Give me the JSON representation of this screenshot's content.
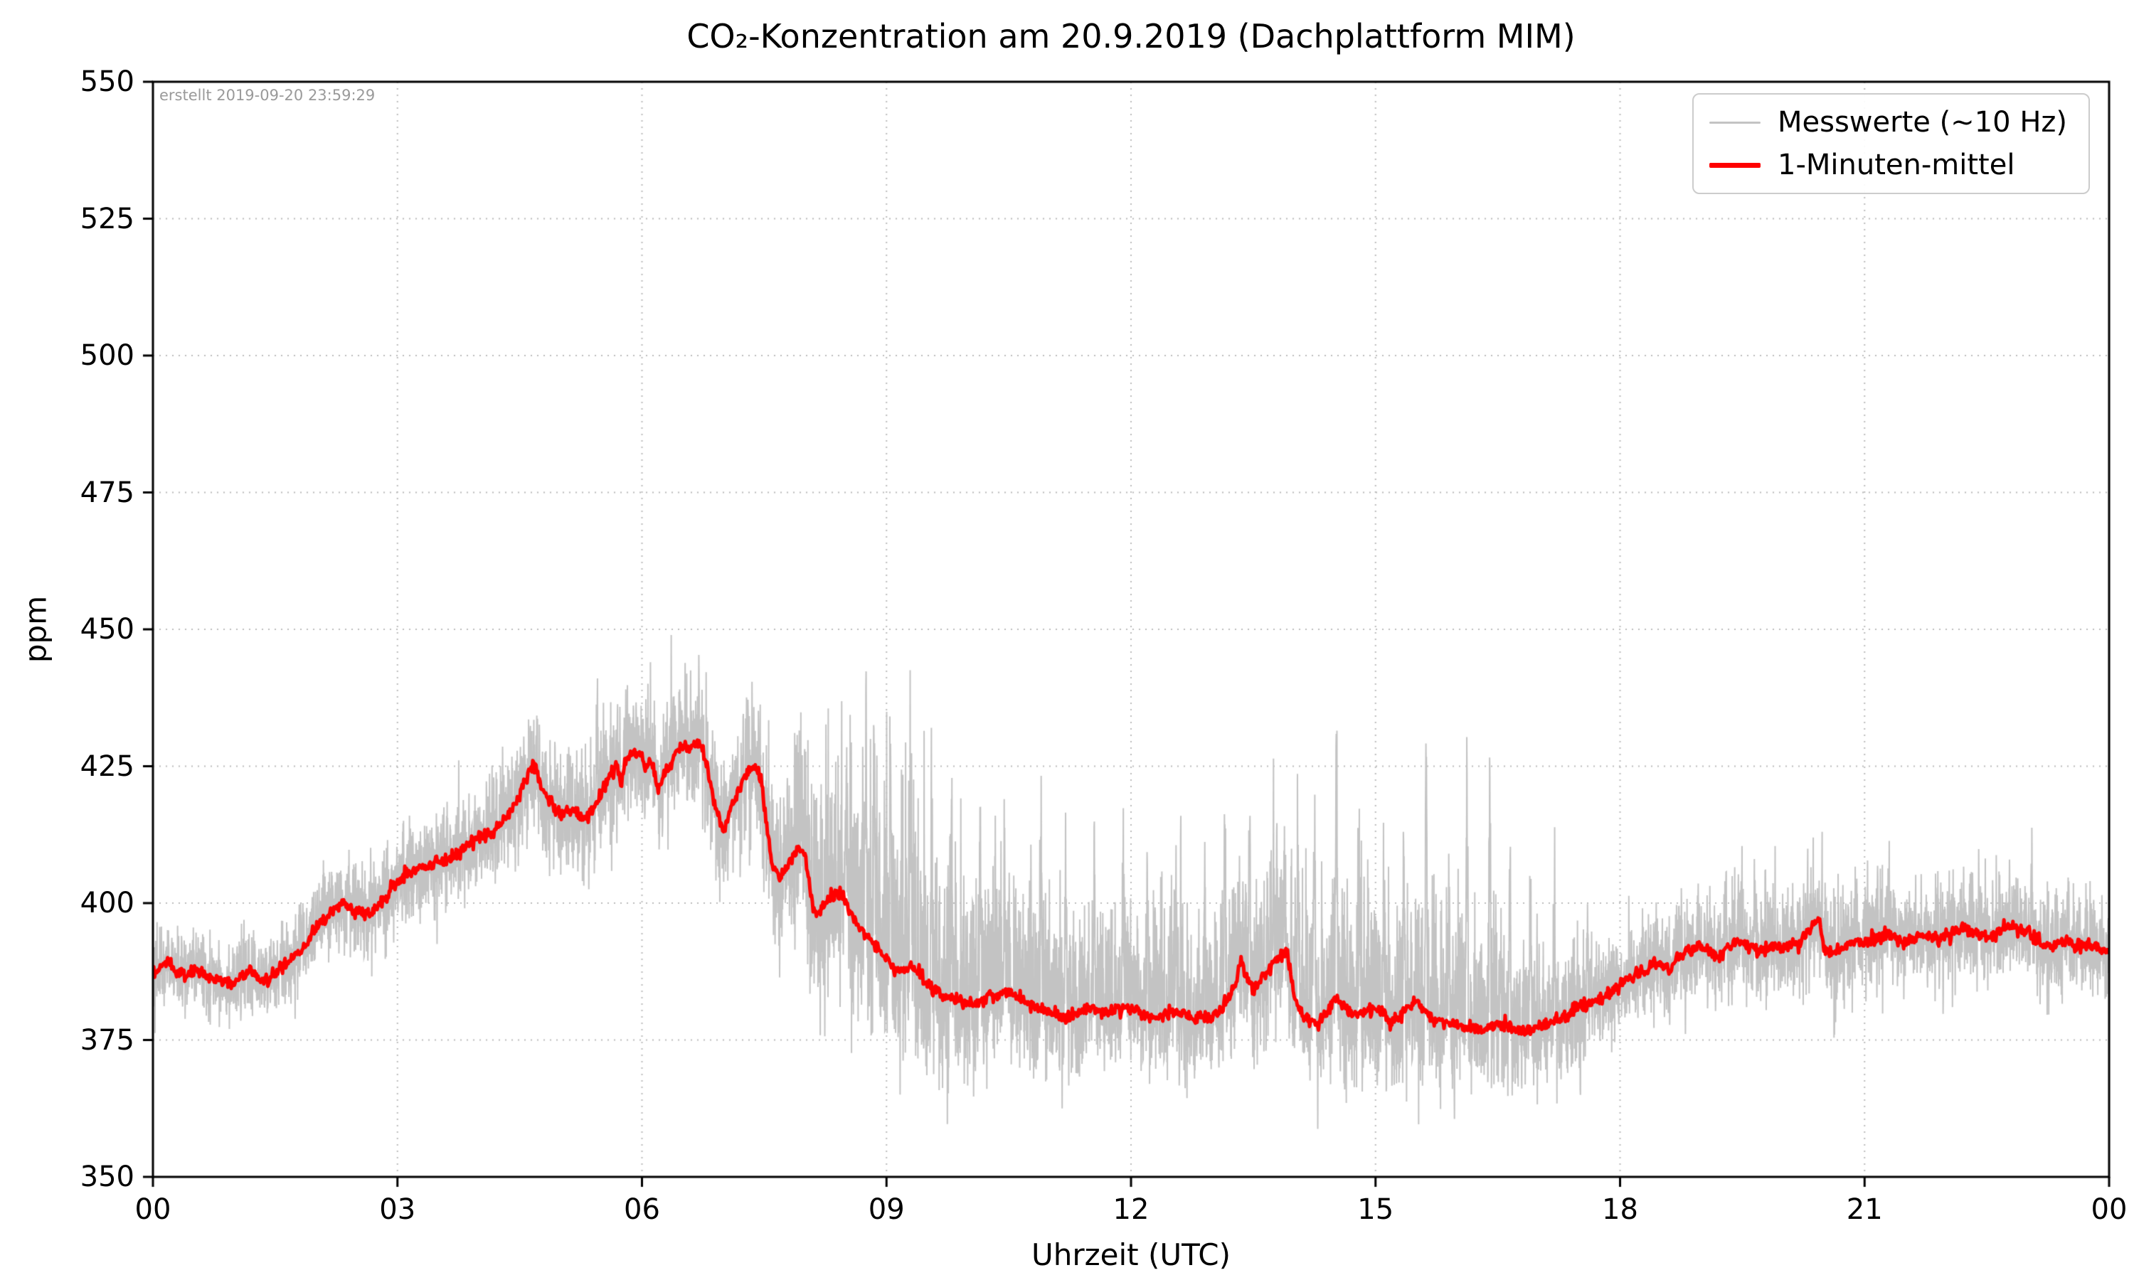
{
  "chart_data": {
    "type": "line",
    "title": "CO₂-Konzentration am 20.9.2019 (Dachplattform MIM)",
    "xlabel": "Uhrzeit (UTC)",
    "ylabel": "ppm",
    "annotation": "erstellt 2019-09-20 23:59:29",
    "xlim": [
      0,
      24
    ],
    "ylim": [
      350,
      550
    ],
    "xticks": [
      0,
      3,
      6,
      9,
      12,
      15,
      18,
      21,
      24
    ],
    "xtick_labels": [
      "00",
      "03",
      "06",
      "09",
      "12",
      "15",
      "18",
      "21",
      "00"
    ],
    "yticks": [
      350,
      375,
      400,
      425,
      450,
      475,
      500,
      525,
      550
    ],
    "grid": true,
    "colors": {
      "raw": "#c3c3c3",
      "mean": "#ff0000",
      "grid": "#bbbbbb",
      "spine": "#000000"
    },
    "legend": {
      "position": "upper right",
      "entries": [
        {
          "label": "Messwerte (~10 Hz)",
          "color": "#c3c3c3",
          "linewidth": 2
        },
        {
          "label": "1-Minuten-mittel",
          "color": "#ff0000",
          "linewidth": 6
        }
      ]
    },
    "mean_series": {
      "name": "1-Minuten-mittel",
      "color": "#ff0000",
      "linewidth": 5,
      "jitter": 0.6,
      "points": [
        [
          0.0,
          387.5
        ],
        [
          0.1,
          388.5
        ],
        [
          0.2,
          389
        ],
        [
          0.3,
          387.5
        ],
        [
          0.4,
          386.5
        ],
        [
          0.5,
          388
        ],
        [
          0.6,
          387.5
        ],
        [
          0.7,
          386
        ],
        [
          0.8,
          386.5
        ],
        [
          0.9,
          385.5
        ],
        [
          1.0,
          385.5
        ],
        [
          1.1,
          386.5
        ],
        [
          1.2,
          387.5
        ],
        [
          1.3,
          386
        ],
        [
          1.4,
          386
        ],
        [
          1.5,
          387
        ],
        [
          1.6,
          388.5
        ],
        [
          1.7,
          389.5
        ],
        [
          1.8,
          391
        ],
        [
          1.9,
          393
        ],
        [
          2.0,
          395.5
        ],
        [
          2.1,
          397
        ],
        [
          2.2,
          398.5
        ],
        [
          2.3,
          400
        ],
        [
          2.4,
          399.5
        ],
        [
          2.5,
          398.5
        ],
        [
          2.6,
          398
        ],
        [
          2.7,
          398.5
        ],
        [
          2.8,
          400
        ],
        [
          2.9,
          402
        ],
        [
          3.0,
          404
        ],
        [
          3.1,
          405.5
        ],
        [
          3.2,
          406
        ],
        [
          3.3,
          406.5
        ],
        [
          3.4,
          407
        ],
        [
          3.5,
          407.5
        ],
        [
          3.6,
          408
        ],
        [
          3.7,
          409
        ],
        [
          3.8,
          410
        ],
        [
          3.9,
          411
        ],
        [
          4.0,
          412
        ],
        [
          4.1,
          412.5
        ],
        [
          4.2,
          413.5
        ],
        [
          4.3,
          415
        ],
        [
          4.4,
          417
        ],
        [
          4.5,
          420
        ],
        [
          4.6,
          423.5
        ],
        [
          4.65,
          425.5
        ],
        [
          4.7,
          424.5
        ],
        [
          4.8,
          420
        ],
        [
          4.9,
          417.5
        ],
        [
          5.0,
          416
        ],
        [
          5.1,
          417
        ],
        [
          5.2,
          416.5
        ],
        [
          5.3,
          415.5
        ],
        [
          5.4,
          417
        ],
        [
          5.5,
          420
        ],
        [
          5.6,
          423
        ],
        [
          5.7,
          425.5
        ],
        [
          5.75,
          422
        ],
        [
          5.8,
          426
        ],
        [
          5.9,
          427.5
        ],
        [
          6.0,
          427
        ],
        [
          6.05,
          424
        ],
        [
          6.1,
          426.5
        ],
        [
          6.2,
          421
        ],
        [
          6.3,
          424
        ],
        [
          6.4,
          427
        ],
        [
          6.5,
          429
        ],
        [
          6.6,
          428.5
        ],
        [
          6.7,
          429.5
        ],
        [
          6.8,
          425
        ],
        [
          6.9,
          417
        ],
        [
          7.0,
          413
        ],
        [
          7.05,
          415
        ],
        [
          7.1,
          418
        ],
        [
          7.2,
          421
        ],
        [
          7.3,
          424
        ],
        [
          7.4,
          425
        ],
        [
          7.45,
          423
        ],
        [
          7.5,
          418
        ],
        [
          7.55,
          412
        ],
        [
          7.6,
          407
        ],
        [
          7.7,
          404.5
        ],
        [
          7.8,
          407
        ],
        [
          7.9,
          410
        ],
        [
          8.0,
          409
        ],
        [
          8.05,
          404
        ],
        [
          8.1,
          398.5
        ],
        [
          8.2,
          399
        ],
        [
          8.3,
          401
        ],
        [
          8.4,
          402
        ],
        [
          8.5,
          400
        ],
        [
          8.6,
          397
        ],
        [
          8.7,
          395
        ],
        [
          8.8,
          393.5
        ],
        [
          8.9,
          391.5
        ],
        [
          9.0,
          390
        ],
        [
          9.1,
          388
        ],
        [
          9.2,
          387.5
        ],
        [
          9.3,
          389
        ],
        [
          9.4,
          387
        ],
        [
          9.5,
          385
        ],
        [
          9.6,
          384
        ],
        [
          9.7,
          383
        ],
        [
          9.8,
          382.5
        ],
        [
          9.9,
          382
        ],
        [
          10.0,
          382
        ],
        [
          10.1,
          381.5
        ],
        [
          10.2,
          382.5
        ],
        [
          10.3,
          383
        ],
        [
          10.4,
          383.5
        ],
        [
          10.5,
          384
        ],
        [
          10.6,
          383
        ],
        [
          10.7,
          382
        ],
        [
          10.8,
          381
        ],
        [
          10.9,
          380.5
        ],
        [
          11.0,
          380
        ],
        [
          11.1,
          379.5
        ],
        [
          11.2,
          379
        ],
        [
          11.3,
          379.5
        ],
        [
          11.4,
          380.5
        ],
        [
          11.5,
          381
        ],
        [
          11.6,
          380.5
        ],
        [
          11.7,
          380
        ],
        [
          11.8,
          380.5
        ],
        [
          11.9,
          381
        ],
        [
          12.0,
          381
        ],
        [
          12.1,
          380
        ],
        [
          12.2,
          379.5
        ],
        [
          12.3,
          379
        ],
        [
          12.4,
          379.5
        ],
        [
          12.5,
          380
        ],
        [
          12.6,
          380.5
        ],
        [
          12.7,
          379.5
        ],
        [
          12.8,
          379
        ],
        [
          12.9,
          379.5
        ],
        [
          13.0,
          379
        ],
        [
          13.1,
          380.5
        ],
        [
          13.2,
          383
        ],
        [
          13.3,
          386
        ],
        [
          13.35,
          390
        ],
        [
          13.4,
          387
        ],
        [
          13.5,
          384
        ],
        [
          13.6,
          386
        ],
        [
          13.7,
          388.5
        ],
        [
          13.8,
          390
        ],
        [
          13.9,
          391
        ],
        [
          13.95,
          388
        ],
        [
          14.0,
          383
        ],
        [
          14.1,
          380
        ],
        [
          14.2,
          378.5
        ],
        [
          14.3,
          378
        ],
        [
          14.4,
          380
        ],
        [
          14.5,
          382.5
        ],
        [
          14.6,
          381
        ],
        [
          14.7,
          379.5
        ],
        [
          14.8,
          380
        ],
        [
          14.9,
          380.5
        ],
        [
          15.0,
          381
        ],
        [
          15.1,
          379.5
        ],
        [
          15.2,
          378
        ],
        [
          15.3,
          379
        ],
        [
          15.4,
          381
        ],
        [
          15.5,
          382
        ],
        [
          15.6,
          380.5
        ],
        [
          15.7,
          379
        ],
        [
          15.8,
          378.5
        ],
        [
          15.9,
          378
        ],
        [
          16.0,
          378
        ],
        [
          16.1,
          377.5
        ],
        [
          16.2,
          377
        ],
        [
          16.3,
          377
        ],
        [
          16.4,
          377.5
        ],
        [
          16.5,
          378
        ],
        [
          16.6,
          377.5
        ],
        [
          16.7,
          377
        ],
        [
          16.8,
          376.5
        ],
        [
          16.9,
          377
        ],
        [
          17.0,
          377.5
        ],
        [
          17.1,
          378
        ],
        [
          17.2,
          378.5
        ],
        [
          17.3,
          379
        ],
        [
          17.4,
          380
        ],
        [
          17.5,
          381
        ],
        [
          17.6,
          381.5
        ],
        [
          17.7,
          382
        ],
        [
          17.8,
          383
        ],
        [
          17.9,
          384
        ],
        [
          18.0,
          385
        ],
        [
          18.1,
          386
        ],
        [
          18.2,
          387
        ],
        [
          18.3,
          388
        ],
        [
          18.4,
          389
        ],
        [
          18.5,
          388.5
        ],
        [
          18.6,
          388
        ],
        [
          18.7,
          389.5
        ],
        [
          18.8,
          391
        ],
        [
          18.9,
          391.5
        ],
        [
          19.0,
          392
        ],
        [
          19.1,
          391
        ],
        [
          19.2,
          390
        ],
        [
          19.3,
          391.5
        ],
        [
          19.4,
          392.5
        ],
        [
          19.5,
          393
        ],
        [
          19.6,
          392
        ],
        [
          19.7,
          391
        ],
        [
          19.8,
          391.5
        ],
        [
          19.9,
          392
        ],
        [
          20.0,
          392
        ],
        [
          20.1,
          392.5
        ],
        [
          20.2,
          393
        ],
        [
          20.3,
          394.5
        ],
        [
          20.4,
          396.5
        ],
        [
          20.45,
          397
        ],
        [
          20.5,
          392
        ],
        [
          20.6,
          390.5
        ],
        [
          20.7,
          392
        ],
        [
          20.8,
          392.5
        ],
        [
          20.9,
          393
        ],
        [
          21.0,
          393
        ],
        [
          21.1,
          393.5
        ],
        [
          21.2,
          394
        ],
        [
          21.3,
          394.5
        ],
        [
          21.4,
          393.5
        ],
        [
          21.5,
          393
        ],
        [
          21.6,
          393.5
        ],
        [
          21.7,
          394
        ],
        [
          21.8,
          394
        ],
        [
          21.9,
          393.5
        ],
        [
          22.0,
          394
        ],
        [
          22.1,
          394.5
        ],
        [
          22.2,
          395
        ],
        [
          22.3,
          395
        ],
        [
          22.4,
          394.5
        ],
        [
          22.5,
          394
        ],
        [
          22.6,
          394.5
        ],
        [
          22.7,
          395.5
        ],
        [
          22.8,
          396
        ],
        [
          22.9,
          395.5
        ],
        [
          23.0,
          395
        ],
        [
          23.1,
          393.5
        ],
        [
          23.2,
          392
        ],
        [
          23.3,
          392.5
        ],
        [
          23.4,
          393
        ],
        [
          23.5,
          392.5
        ],
        [
          23.6,
          392
        ],
        [
          23.7,
          392.5
        ],
        [
          23.8,
          392
        ],
        [
          23.9,
          391.5
        ],
        [
          24.0,
          391
        ]
      ]
    },
    "raw_series": {
      "name": "Messwerte (~10 Hz)",
      "color": "#c3c3c3",
      "linewidth": 2,
      "derived_from": "mean_series plus noise",
      "noise_spread": [
        [
          0,
          3.5
        ],
        [
          1,
          3.5
        ],
        [
          2,
          4
        ],
        [
          3,
          4.5
        ],
        [
          4,
          5
        ],
        [
          4.7,
          5.5
        ],
        [
          5.5,
          6
        ],
        [
          6.5,
          6
        ],
        [
          7,
          6
        ],
        [
          7.5,
          7
        ],
        [
          8,
          8
        ],
        [
          8.5,
          9
        ],
        [
          9,
          9
        ],
        [
          9.5,
          8.5
        ],
        [
          10,
          7
        ],
        [
          10.5,
          6
        ],
        [
          11,
          5.5
        ],
        [
          12,
          5.5
        ],
        [
          13,
          6
        ],
        [
          14,
          6
        ],
        [
          15,
          6.5
        ],
        [
          16,
          6.5
        ],
        [
          17,
          5.5
        ],
        [
          17.5,
          5
        ],
        [
          18,
          4.5
        ],
        [
          19,
          4.5
        ],
        [
          20,
          5
        ],
        [
          21,
          5
        ],
        [
          22,
          4.5
        ],
        [
          23,
          4.5
        ],
        [
          24,
          4
        ]
      ],
      "noise_skew": [
        [
          0,
          1.0
        ],
        [
          7.5,
          1.0
        ],
        [
          8,
          1.4
        ],
        [
          9,
          1.8
        ],
        [
          16,
          1.8
        ],
        [
          17,
          1.4
        ],
        [
          18,
          1.1
        ],
        [
          24,
          1.1
        ]
      ],
      "spikes": [
        [
          5.45,
          433
        ],
        [
          5.9,
          435
        ],
        [
          6.35,
          436
        ],
        [
          6.7,
          437
        ],
        [
          7.3,
          436
        ],
        [
          7.95,
          424
        ],
        [
          8.5,
          421
        ],
        [
          8.75,
          429
        ],
        [
          8.85,
          431
        ],
        [
          9.05,
          426
        ],
        [
          9.3,
          428
        ],
        [
          9.55,
          419
        ],
        [
          9.8,
          414
        ],
        [
          10.15,
          407
        ],
        [
          10.45,
          404
        ],
        [
          10.9,
          409
        ],
        [
          11.2,
          404
        ],
        [
          11.55,
          401
        ],
        [
          11.9,
          399
        ],
        [
          12.2,
          403
        ],
        [
          12.55,
          398
        ],
        [
          12.9,
          401
        ],
        [
          13.15,
          421
        ],
        [
          13.45,
          407
        ],
        [
          13.75,
          404
        ],
        [
          14.05,
          406
        ],
        [
          14.25,
          409
        ],
        [
          14.52,
          430
        ],
        [
          14.8,
          401
        ],
        [
          15.1,
          399
        ],
        [
          15.35,
          406
        ],
        [
          15.62,
          418
        ],
        [
          15.9,
          404
        ],
        [
          16.12,
          414
        ],
        [
          16.4,
          403
        ],
        [
          16.65,
          407
        ],
        [
          16.9,
          401
        ],
        [
          17.2,
          398
        ],
        [
          17.6,
          396
        ],
        [
          19.3,
          404
        ],
        [
          19.65,
          403
        ],
        [
          20.3,
          403
        ],
        [
          20.9,
          401
        ],
        [
          21.3,
          401
        ],
        [
          21.9,
          400
        ],
        [
          22.4,
          401
        ],
        [
          23.05,
          401
        ],
        [
          23.5,
          399
        ]
      ],
      "spike_width": 0.012
    }
  }
}
